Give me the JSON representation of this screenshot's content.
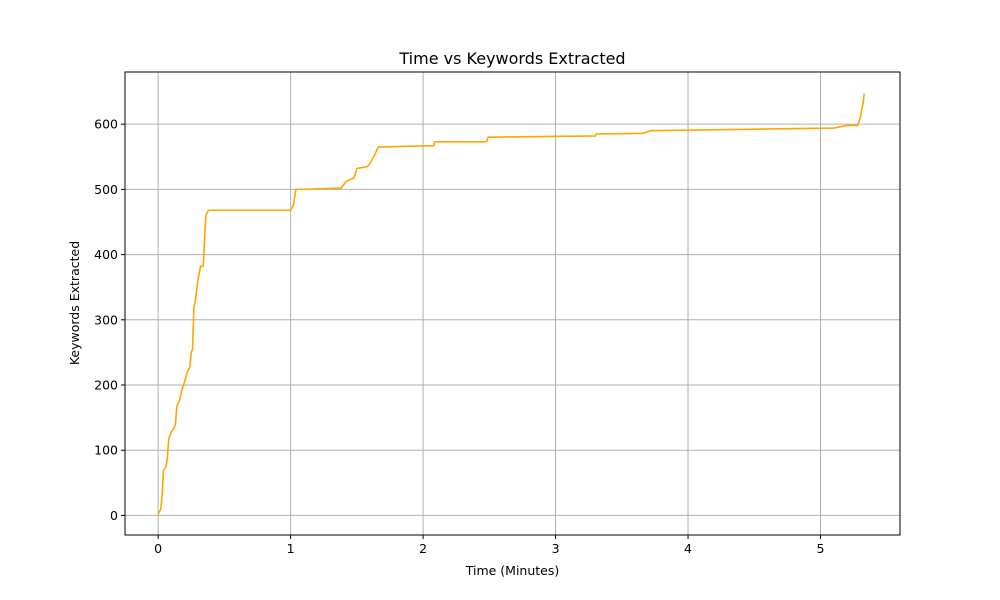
{
  "chart_data": {
    "type": "line",
    "title": "Time vs Keywords Extracted",
    "xlabel": "Time (Minutes)",
    "ylabel": "Keywords Extracted",
    "xlim": [
      -0.25,
      5.6
    ],
    "ylim": [
      -30,
      680
    ],
    "xticks": [
      0,
      1,
      2,
      3,
      4,
      5
    ],
    "yticks": [
      0,
      100,
      200,
      300,
      400,
      500,
      600
    ],
    "grid": true,
    "series": [
      {
        "color": "#ffa500",
        "points": [
          [
            0.0,
            2
          ],
          [
            0.02,
            10
          ],
          [
            0.03,
            30
          ],
          [
            0.04,
            68
          ],
          [
            0.06,
            75
          ],
          [
            0.07,
            88
          ],
          [
            0.08,
            118
          ],
          [
            0.1,
            128
          ],
          [
            0.12,
            135
          ],
          [
            0.13,
            138
          ],
          [
            0.14,
            165
          ],
          [
            0.15,
            172
          ],
          [
            0.16,
            175
          ],
          [
            0.18,
            193
          ],
          [
            0.2,
            205
          ],
          [
            0.22,
            220
          ],
          [
            0.24,
            228
          ],
          [
            0.25,
            250
          ],
          [
            0.26,
            255
          ],
          [
            0.27,
            320
          ],
          [
            0.28,
            328
          ],
          [
            0.3,
            360
          ],
          [
            0.32,
            382
          ],
          [
            0.34,
            382
          ],
          [
            0.35,
            420
          ],
          [
            0.36,
            460
          ],
          [
            0.38,
            468
          ],
          [
            1.0,
            468
          ],
          [
            1.02,
            475
          ],
          [
            1.04,
            500
          ],
          [
            1.1,
            500
          ],
          [
            1.38,
            502
          ],
          [
            1.42,
            512
          ],
          [
            1.48,
            518
          ],
          [
            1.5,
            532
          ],
          [
            1.58,
            535
          ],
          [
            1.6,
            540
          ],
          [
            1.64,
            555
          ],
          [
            1.66,
            565
          ],
          [
            2.08,
            567
          ],
          [
            2.09,
            573
          ],
          [
            2.48,
            573
          ],
          [
            2.49,
            580
          ],
          [
            3.3,
            582
          ],
          [
            3.31,
            585
          ],
          [
            3.66,
            586
          ],
          [
            3.72,
            590
          ],
          [
            5.1,
            594
          ],
          [
            5.2,
            598
          ],
          [
            5.28,
            598
          ],
          [
            5.3,
            610
          ],
          [
            5.31,
            622
          ],
          [
            5.32,
            630
          ],
          [
            5.33,
            647
          ]
        ]
      }
    ]
  }
}
